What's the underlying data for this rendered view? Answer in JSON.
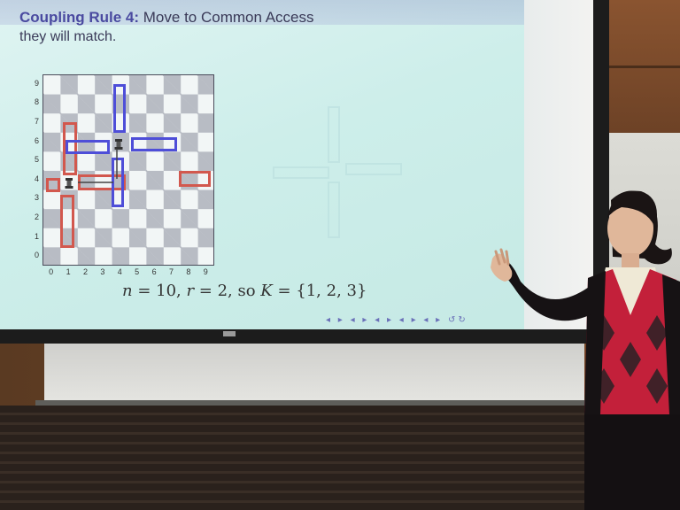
{
  "slide": {
    "title_bold": "Coupling Rule 4:",
    "title_rest": " Move to Common Access",
    "subtitle": "they will match.",
    "caption_n": "n",
    "caption_eq1": " = 10, ",
    "caption_r": "r",
    "caption_eq2": " = 2, so ",
    "caption_K": "K",
    "caption_set": " = {1, 2, 3}",
    "nav": "◂ ▸ ◂ ▸ ◂ ▸ ◂ ▸ ◂ ▸ ↺↻"
  },
  "chart_data": {
    "type": "table",
    "x": [
      "0",
      "1",
      "2",
      "3",
      "4",
      "5",
      "6",
      "7",
      "8",
      "9"
    ],
    "y": [
      "0",
      "1",
      "2",
      "3",
      "4",
      "5",
      "6",
      "7",
      "8",
      "9"
    ]
  },
  "colors": {
    "red_rect": "#d2584e",
    "blue_rect": "#4e4ed8",
    "screen": "#cdeeea"
  }
}
